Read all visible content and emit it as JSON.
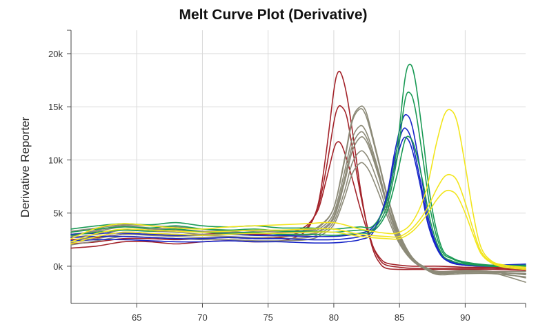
{
  "chart_data": {
    "type": "line",
    "title": "Melt Curve Plot (Derivative)",
    "xlabel": "",
    "ylabel": "Derivative Reporter",
    "xlim": [
      60,
      94.6
    ],
    "ylim": [
      -3500,
      22200
    ],
    "x_ticks": [
      65,
      70,
      75,
      80,
      85,
      90
    ],
    "y_ticks": [
      0,
      5000,
      10000,
      15000,
      20000
    ],
    "y_tick_labels": [
      "0k",
      "5k",
      "10k",
      "15k",
      "20k"
    ],
    "grid": true,
    "legend": "none",
    "colors": {
      "red": "#a3232a",
      "gray": "#8c8a78",
      "blue": "#1826c8",
      "green": "#1a9a55",
      "yellow": "#f2e51d"
    },
    "series": [
      {
        "color": "#a3232a",
        "x": [
          60,
          62,
          64,
          66,
          68,
          70,
          72,
          74,
          76,
          77,
          78,
          78.8,
          79.4,
          80,
          80.3,
          80.6,
          81,
          81.5,
          82,
          82.5,
          83,
          83.5,
          84,
          85,
          86,
          88,
          90,
          92,
          94.6
        ],
        "y": [
          1700,
          1900,
          2300,
          2300,
          2100,
          2300,
          2400,
          2300,
          2400,
          2700,
          3500,
          5800,
          10500,
          16500,
          18200,
          18000,
          16000,
          12000,
          7500,
          4000,
          1500,
          300,
          -200,
          -300,
          -300,
          -300,
          -300,
          -300,
          -400
        ]
      },
      {
        "color": "#a3232a",
        "x": [
          60,
          62,
          64,
          66,
          68,
          70,
          72,
          74,
          76,
          77,
          78,
          78.8,
          79.4,
          80,
          80.3,
          80.6,
          81,
          81.5,
          82,
          82.5,
          83,
          83.5,
          84,
          85,
          86,
          88,
          90,
          92,
          94.6
        ],
        "y": [
          2100,
          2300,
          2600,
          2600,
          2500,
          2600,
          2700,
          2600,
          2700,
          3000,
          3700,
          5600,
          9000,
          13500,
          14900,
          15000,
          14000,
          10500,
          7000,
          4000,
          1800,
          600,
          100,
          -100,
          -200,
          -200,
          -200,
          -200,
          -300
        ]
      },
      {
        "color": "#a3232a",
        "x": [
          60,
          62,
          64,
          66,
          68,
          70,
          72,
          74,
          76,
          77,
          78,
          78.8,
          79.4,
          80,
          80.3,
          80.6,
          81,
          81.5,
          82,
          82.5,
          83,
          83.5,
          84,
          85,
          86,
          88,
          90,
          92,
          94.6
        ],
        "y": [
          2500,
          2700,
          3000,
          3000,
          2900,
          3000,
          3100,
          3000,
          3100,
          3300,
          3900,
          5300,
          8000,
          11000,
          11700,
          11400,
          10000,
          7800,
          5500,
          3500,
          1800,
          800,
          300,
          100,
          0,
          0,
          -100,
          -100,
          -200
        ]
      },
      {
        "color": "#8c8a78",
        "x": [
          60,
          62,
          64,
          66,
          68,
          70,
          72,
          74,
          76,
          78,
          79,
          80,
          80.8,
          81.4,
          82,
          82.4,
          82.8,
          83.4,
          84,
          84.6,
          85.2,
          86,
          87,
          88,
          90,
          92,
          94.6
        ],
        "y": [
          2800,
          3400,
          3800,
          3600,
          3500,
          3300,
          3300,
          3100,
          3200,
          3300,
          3800,
          5500,
          10000,
          13800,
          15000,
          14700,
          13000,
          10000,
          7000,
          4500,
          2500,
          800,
          -200,
          -700,
          -500,
          -600,
          -1500
        ]
      },
      {
        "color": "#8c8a78",
        "x": [
          60,
          62,
          64,
          66,
          68,
          70,
          72,
          74,
          76,
          78,
          79,
          80,
          80.8,
          81.4,
          82,
          82.4,
          82.8,
          83.4,
          84,
          84.6,
          85.2,
          86,
          87,
          88,
          90,
          92,
          94.6
        ],
        "y": [
          3300,
          3600,
          3900,
          3800,
          3700,
          3500,
          3400,
          3300,
          3300,
          3400,
          3900,
          5500,
          9800,
          13600,
          14800,
          14300,
          12700,
          9800,
          6800,
          4300,
          2300,
          700,
          -100,
          -500,
          -400,
          -500,
          -1100
        ]
      },
      {
        "color": "#8c8a78",
        "x": [
          60,
          62,
          64,
          66,
          68,
          70,
          72,
          74,
          76,
          78,
          79,
          80,
          80.8,
          81.4,
          82,
          82.4,
          82.8,
          83.4,
          84,
          84.6,
          85.2,
          86,
          87,
          88,
          90,
          92,
          94.6
        ],
        "y": [
          3000,
          3300,
          3700,
          3500,
          3400,
          3200,
          3200,
          3100,
          3100,
          3200,
          3600,
          5000,
          8800,
          12000,
          13200,
          12800,
          11500,
          9000,
          6200,
          4000,
          2200,
          700,
          -200,
          -600,
          -400,
          -500,
          -800
        ]
      },
      {
        "color": "#8c8a78",
        "x": [
          60,
          62,
          64,
          66,
          68,
          70,
          72,
          74,
          76,
          78,
          79,
          80,
          80.8,
          81.4,
          82,
          82.4,
          82.8,
          83.4,
          84,
          84.6,
          85.2,
          86,
          87,
          88,
          90,
          92,
          94.6
        ],
        "y": [
          2700,
          3000,
          3400,
          3300,
          3200,
          3000,
          3000,
          2900,
          2900,
          3000,
          3400,
          4700,
          8200,
          11300,
          12600,
          12300,
          11100,
          8700,
          6000,
          3800,
          2000,
          600,
          -300,
          -700,
          -500,
          -600,
          -700
        ]
      },
      {
        "color": "#8c8a78",
        "x": [
          60,
          62,
          64,
          66,
          68,
          70,
          72,
          74,
          76,
          78,
          79,
          80,
          80.8,
          81.4,
          82,
          82.4,
          82.8,
          83.4,
          84,
          84.6,
          85.2,
          86,
          87,
          88,
          90,
          92,
          94.6
        ],
        "y": [
          2400,
          2800,
          3200,
          3100,
          3000,
          2900,
          2800,
          2700,
          2800,
          2900,
          3300,
          4500,
          7800,
          10800,
          12100,
          11900,
          10800,
          8500,
          5900,
          3700,
          2000,
          600,
          -200,
          -600,
          -500,
          -500,
          -500
        ]
      },
      {
        "color": "#8c8a78",
        "x": [
          60,
          62,
          64,
          66,
          68,
          70,
          72,
          74,
          76,
          78,
          79,
          80,
          80.8,
          81.4,
          82,
          82.4,
          82.8,
          83.4,
          84,
          84.6,
          85.2,
          86,
          87,
          88,
          90,
          92,
          94.6
        ],
        "y": [
          2200,
          2600,
          3000,
          2900,
          2800,
          2700,
          2700,
          2600,
          2600,
          2700,
          3100,
          4200,
          7000,
          9700,
          10800,
          10600,
          9700,
          7700,
          5400,
          3400,
          1800,
          500,
          -300,
          -700,
          -600,
          -600,
          -700
        ]
      },
      {
        "color": "#8c8a78",
        "x": [
          60,
          62,
          64,
          66,
          68,
          70,
          72,
          74,
          76,
          78,
          79,
          80,
          80.8,
          81.4,
          82,
          82.4,
          82.8,
          83.4,
          84,
          84.6,
          85.2,
          86,
          87,
          88,
          90,
          92,
          94.6
        ],
        "y": [
          2000,
          2400,
          2800,
          2700,
          2600,
          2500,
          2500,
          2400,
          2400,
          2500,
          2900,
          3900,
          6400,
          8700,
          9700,
          9500,
          8700,
          6900,
          4900,
          3100,
          1700,
          500,
          -300,
          -800,
          -700,
          -700,
          -1000
        ]
      },
      {
        "color": "#1826c8",
        "x": [
          60,
          62,
          64,
          66,
          68,
          70,
          72,
          74,
          76,
          78,
          80,
          81,
          82,
          83,
          84,
          84.6,
          85.2,
          85.6,
          86,
          86.6,
          87.2,
          88,
          88.8,
          90,
          92,
          94.6
        ],
        "y": [
          2400,
          2500,
          2500,
          2400,
          2300,
          2300,
          2400,
          2300,
          2300,
          2200,
          2200,
          2300,
          2500,
          3200,
          6500,
          10500,
          13700,
          14200,
          13000,
          9000,
          4500,
          1500,
          500,
          200,
          100,
          200
        ]
      },
      {
        "color": "#1826c8",
        "x": [
          60,
          62,
          64,
          66,
          68,
          70,
          72,
          74,
          76,
          78,
          80,
          81,
          82,
          83,
          84,
          84.6,
          85.2,
          85.6,
          86,
          86.6,
          87.2,
          88,
          88.8,
          90,
          92,
          94.6
        ],
        "y": [
          2700,
          2800,
          2800,
          2700,
          2600,
          2600,
          2700,
          2600,
          2600,
          2500,
          2500,
          2600,
          2800,
          3400,
          6300,
          10000,
          12700,
          12800,
          11500,
          8000,
          4000,
          1400,
          400,
          100,
          0,
          100
        ]
      },
      {
        "color": "#1826c8",
        "x": [
          60,
          62,
          64,
          66,
          68,
          70,
          72,
          74,
          76,
          78,
          80,
          81,
          82,
          83,
          84,
          84.6,
          85.2,
          85.6,
          86,
          86.6,
          87.2,
          88,
          88.8,
          90,
          92,
          94.6
        ],
        "y": [
          3000,
          3100,
          3100,
          3000,
          2900,
          2900,
          3000,
          2900,
          2900,
          2800,
          2800,
          2900,
          3100,
          3700,
          6000,
          9200,
          11800,
          12000,
          10800,
          7500,
          3800,
          1300,
          400,
          100,
          0,
          0
        ]
      },
      {
        "color": "#1a9a55",
        "x": [
          60,
          62,
          64,
          66,
          68,
          70,
          72,
          74,
          76,
          78,
          80,
          81,
          82,
          83,
          84,
          84.8,
          85.4,
          85.8,
          86.2,
          86.8,
          87.4,
          88.2,
          89,
          90,
          92,
          94.6
        ],
        "y": [
          3500,
          3800,
          4000,
          3900,
          4100,
          3800,
          3700,
          3800,
          3600,
          3600,
          3500,
          3600,
          3700,
          3800,
          6000,
          11000,
          17500,
          19000,
          17500,
          12000,
          6000,
          1800,
          800,
          400,
          100,
          100
        ]
      },
      {
        "color": "#1a9a55",
        "x": [
          60,
          62,
          64,
          66,
          68,
          70,
          72,
          74,
          76,
          78,
          80,
          81,
          82,
          83,
          84,
          84.8,
          85.4,
          85.8,
          86.2,
          86.8,
          87.4,
          88.2,
          89,
          90,
          92,
          94.6
        ],
        "y": [
          3200,
          3500,
          3700,
          3600,
          3800,
          3500,
          3400,
          3500,
          3300,
          3300,
          3200,
          3300,
          3400,
          3500,
          5500,
          10000,
          15500,
          16300,
          14800,
          10000,
          5000,
          1500,
          700,
          300,
          0,
          0
        ]
      },
      {
        "color": "#1a9a55",
        "x": [
          60,
          62,
          64,
          66,
          68,
          70,
          72,
          74,
          76,
          78,
          80,
          81,
          82,
          83,
          84,
          84.8,
          85.4,
          85.8,
          86.2,
          86.8,
          87.4,
          88.2,
          89,
          90,
          92,
          94.6
        ],
        "y": [
          2900,
          3200,
          3400,
          3300,
          3500,
          3200,
          3100,
          3200,
          3000,
          3000,
          2900,
          3000,
          3100,
          3300,
          5000,
          8500,
          11800,
          12100,
          11000,
          7800,
          4000,
          1200,
          500,
          200,
          0,
          0
        ]
      },
      {
        "color": "#f2e51d",
        "x": [
          60,
          62,
          64,
          66,
          68,
          70,
          72,
          74,
          76,
          78,
          80,
          82,
          84,
          85,
          86,
          87,
          87.8,
          88.4,
          88.9,
          89.4,
          90,
          90.6,
          91.2,
          92,
          93,
          94.6
        ],
        "y": [
          2600,
          3600,
          4000,
          3800,
          3600,
          3500,
          3700,
          3800,
          3900,
          4000,
          4100,
          3500,
          3100,
          3200,
          4200,
          7000,
          11500,
          14200,
          14700,
          13500,
          9500,
          5000,
          1800,
          500,
          100,
          -100
        ]
      },
      {
        "color": "#f2e51d",
        "x": [
          60,
          62,
          64,
          66,
          68,
          70,
          72,
          74,
          76,
          78,
          80,
          82,
          84,
          85,
          86,
          87,
          87.8,
          88.4,
          88.9,
          89.4,
          90,
          90.6,
          91.2,
          92,
          93,
          94.6
        ],
        "y": [
          2300,
          3100,
          3500,
          3400,
          3300,
          3200,
          3300,
          3400,
          3400,
          3500,
          3500,
          3000,
          2800,
          2800,
          3600,
          5200,
          7200,
          8400,
          8600,
          8000,
          6000,
          3500,
          1400,
          400,
          0,
          -200
        ]
      },
      {
        "color": "#f2e51d",
        "x": [
          60,
          62,
          64,
          66,
          68,
          70,
          72,
          74,
          76,
          78,
          80,
          82,
          84,
          85,
          86,
          87,
          87.8,
          88.4,
          88.9,
          89.4,
          90,
          90.6,
          91.2,
          92,
          93,
          94.6
        ],
        "y": [
          2100,
          2800,
          3200,
          3100,
          3000,
          2900,
          3000,
          3100,
          3100,
          3200,
          3200,
          2800,
          2600,
          2600,
          3300,
          4700,
          6200,
          7000,
          7100,
          6600,
          5000,
          3000,
          1200,
          300,
          -100,
          -300
        ]
      }
    ]
  }
}
